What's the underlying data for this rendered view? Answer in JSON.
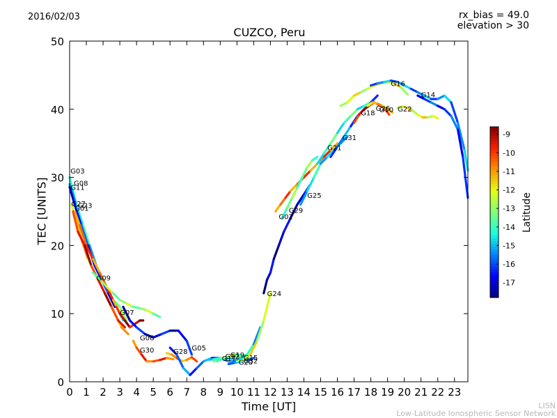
{
  "header": {
    "date": "2016/02/03",
    "note_bias": "rx_bias = 49.0",
    "note_elevation": "elevation > 30"
  },
  "footer": {
    "credit_line1": "LISN",
    "credit_line2": "Low-Latitude Ionospheric Sensor Network"
  },
  "chart_data": {
    "type": "scatter",
    "title": "CUZCO, Peru",
    "xlabel": "Time [UT]",
    "ylabel": "TEC [UNITS]",
    "xlim": [
      0,
      23.8
    ],
    "ylim": [
      0,
      50
    ],
    "xticks": [
      "0",
      "1",
      "2",
      "3",
      "4",
      "5",
      "6",
      "7",
      "8",
      "9",
      "10",
      "11",
      "12",
      "13",
      "14",
      "15",
      "16",
      "17",
      "18",
      "19",
      "20",
      "21",
      "22",
      "23"
    ],
    "yticks": [
      "0",
      "10",
      "20",
      "30",
      "40",
      "50"
    ],
    "grid": false,
    "colorbar": {
      "label": "Latitude",
      "range": [
        -17.8,
        -8.6
      ],
      "ticks": [
        "-9",
        "-10",
        "-11",
        "-12",
        "-13",
        "-14",
        "-15",
        "-16",
        "-17"
      ],
      "colors": [
        "#00007f",
        "#0000ff",
        "#0080ff",
        "#17ffe0",
        "#7dff7a",
        "#e3ff14",
        "#ff9400",
        "#ff1e00",
        "#7f0000"
      ]
    },
    "series": [
      {
        "name": "G03",
        "label_at": [
          0.05,
          31
        ],
        "lat": -13.5,
        "x": [
          0.0,
          0.3,
          0.6,
          1.0,
          1.4,
          1.8,
          2.2,
          2.6,
          3.0,
          3.4
        ],
        "y": [
          30,
          27,
          24,
          21,
          18,
          16,
          14,
          12,
          11,
          9
        ]
      },
      {
        "name": "G08",
        "label_at": [
          0.25,
          29.2
        ],
        "lat": -14.5,
        "x": [
          0.0,
          0.4,
          0.8,
          1.2,
          1.6,
          2.0,
          2.4,
          2.8,
          3.2
        ],
        "y": [
          29,
          26,
          23,
          20,
          17,
          15,
          13,
          11,
          9
        ]
      },
      {
        "name": "G11",
        "label_at": [
          0.05,
          28.6
        ],
        "lat": -16.5,
        "x": [
          0.0,
          0.3,
          0.7,
          1.1,
          1.5,
          1.9,
          2.3,
          2.7
        ],
        "y": [
          28.6,
          26,
          23,
          20,
          17,
          15,
          13,
          11
        ]
      },
      {
        "name": "G27",
        "label_at": [
          0.1,
          26.2
        ],
        "lat": -11.5,
        "x": [
          0.1,
          0.4,
          0.7,
          1.1,
          1.5,
          1.9,
          2.3,
          2.7,
          3.1,
          3.5
        ],
        "y": [
          26,
          24,
          21,
          18,
          16,
          14,
          12,
          10,
          8,
          7
        ]
      },
      {
        "name": "G23",
        "label_at": [
          0.5,
          25.9
        ],
        "lat": -10.5,
        "x": [
          0.3,
          0.6,
          1.0,
          1.4,
          1.8,
          2.2,
          2.6,
          3.0
        ],
        "y": [
          25,
          23,
          20,
          18,
          16,
          14,
          12,
          10
        ]
      },
      {
        "name": "G01",
        "label_at": [
          0.3,
          25.5
        ],
        "lat": -9.5,
        "x": [
          0.2,
          0.5,
          0.9,
          1.3,
          1.7,
          2.1,
          2.5,
          2.9,
          3.3
        ],
        "y": [
          25,
          22,
          20,
          17,
          15,
          13,
          11,
          9,
          8
        ]
      },
      {
        "name": "G09",
        "label_at": [
          1.6,
          15.3
        ],
        "lat": -13.0,
        "x": [
          1.4,
          1.8,
          2.2,
          2.6,
          3.0,
          3.4,
          3.8,
          4.2,
          4.6,
          5.0,
          5.4
        ],
        "y": [
          16,
          15,
          14,
          13,
          12,
          11.5,
          11,
          10.8,
          10.5,
          10,
          9.5
        ]
      },
      {
        "name": "G07",
        "label_at": [
          3.0,
          10.2
        ],
        "lat": -9.2,
        "x": [
          2.8,
          3.0,
          3.3,
          3.6,
          3.9,
          4.2,
          4.4
        ],
        "y": [
          11,
          10,
          9,
          8,
          8.5,
          9,
          9
        ]
      },
      {
        "name": "G06",
        "label_at": [
          4.2,
          6.5
        ],
        "lat": -16.8,
        "x": [
          3.2,
          3.6,
          4.0,
          4.5,
          5.0,
          5.5,
          6.0,
          6.5,
          7.0,
          7.3
        ],
        "y": [
          11,
          9,
          8,
          7,
          6.5,
          7,
          7.5,
          7.5,
          6,
          4
        ]
      },
      {
        "name": "G30",
        "label_at": [
          4.2,
          4.7
        ],
        "lat": -10.2,
        "x": [
          3.8,
          4.0,
          4.3,
          4.6,
          5.0,
          5.4,
          5.8,
          6.2
        ],
        "y": [
          6,
          5,
          4,
          3,
          3,
          3.2,
          3.5,
          3.3
        ]
      },
      {
        "name": "G28",
        "label_at": [
          6.2,
          4.5
        ],
        "lat": -10.8,
        "x": [
          5.8,
          6.1,
          6.4,
          6.7,
          7.0,
          7.3,
          7.6
        ],
        "y": [
          4.2,
          4.0,
          3.5,
          3.0,
          3.2,
          3.6,
          3.0
        ]
      },
      {
        "name": "G05",
        "label_at": [
          7.3,
          5.0
        ],
        "lat": -15.8,
        "x": [
          6.0,
          6.4,
          6.8,
          7.2,
          7.6,
          8.0,
          8.5,
          9.0,
          9.5,
          10.0
        ],
        "y": [
          5,
          4,
          2,
          1,
          2,
          3,
          3.5,
          3.5,
          3,
          3
        ]
      },
      {
        "name": "G17",
        "label_at": [
          9.1,
          3.5
        ],
        "lat": -14.2,
        "x": [
          8.2,
          8.6,
          9.0,
          9.4,
          9.8,
          10.2
        ],
        "y": [
          3.2,
          3.3,
          3.5,
          3.5,
          3.3,
          3.0
        ]
      },
      {
        "name": "G12",
        "label_at": [
          9.3,
          3.8
        ],
        "lat": -12.6,
        "x": [
          8.6,
          9.0,
          9.4,
          9.8,
          10.2,
          10.6
        ],
        "y": [
          3.0,
          3.2,
          3.6,
          3.9,
          3.6,
          3.2
        ]
      },
      {
        "name": "G19",
        "label_at": [
          9.6,
          4.0
        ],
        "lat": -13.2,
        "x": [
          8.8,
          9.2,
          9.6,
          10.0,
          10.4,
          10.8
        ],
        "y": [
          3.0,
          3.4,
          3.8,
          4.0,
          3.8,
          3.4
        ]
      },
      {
        "name": "G20",
        "label_at": [
          10.1,
          2.9
        ],
        "lat": -15.2,
        "x": [
          9.5,
          9.9,
          10.3,
          10.7,
          11.0
        ],
        "y": [
          2.6,
          2.8,
          3.0,
          3.2,
          3.5
        ]
      },
      {
        "name": "G15",
        "label_at": [
          10.4,
          3.6
        ],
        "lat": -14.8,
        "x": [
          9.8,
          10.2,
          10.6,
          11.0,
          11.4
        ],
        "y": [
          3.0,
          3.4,
          4.0,
          5.5,
          8.0
        ]
      },
      {
        "name": "G32",
        "label_at": [
          10.4,
          3.1
        ],
        "lat": -12.2,
        "x": [
          10.0,
          10.4,
          10.8,
          11.2,
          11.6,
          12.0
        ],
        "y": [
          3.0,
          3.2,
          4.0,
          6.0,
          9.0,
          13.0
        ]
      },
      {
        "name": "G24",
        "label_at": [
          11.8,
          13.0
        ],
        "lat": -17.2,
        "x": [
          11.6,
          11.8,
          12.0,
          12.2,
          12.5,
          12.8,
          13.2,
          13.6,
          14.0,
          14.4
        ],
        "y": [
          13,
          15,
          16,
          18,
          20,
          22,
          24,
          26,
          27.5,
          29
        ]
      },
      {
        "name": "G02",
        "label_at": [
          12.5,
          24.3
        ],
        "lat": -10.5,
        "x": [
          12.3,
          12.6,
          12.9,
          13.2,
          13.6,
          14.0,
          14.4,
          14.8,
          15.2,
          15.6,
          16.0
        ],
        "y": [
          25,
          26,
          27,
          28,
          29,
          30,
          31,
          32,
          33,
          34,
          35
        ]
      },
      {
        "name": "G29",
        "label_at": [
          13.1,
          25.2
        ],
        "lat": -13.4,
        "x": [
          12.7,
          13.0,
          13.3,
          13.6,
          13.9,
          14.2,
          14.5,
          14.8
        ],
        "y": [
          24,
          25.5,
          27,
          28.5,
          30,
          31.5,
          32.5,
          33
        ]
      },
      {
        "name": "G25",
        "label_at": [
          14.2,
          27.4
        ],
        "lat": -14.6,
        "x": [
          13.8,
          14.2,
          14.6,
          15.0,
          15.4,
          15.8,
          16.2,
          16.6
        ],
        "y": [
          26,
          28,
          30,
          32,
          33,
          34,
          35,
          36
        ]
      },
      {
        "name": "G21",
        "label_at": [
          15.4,
          34.4
        ],
        "lat": -14.0,
        "x": [
          14.8,
          15.2,
          15.6,
          16.0,
          16.4,
          16.8,
          17.2,
          17.6,
          18.0
        ],
        "y": [
          32,
          33.5,
          35,
          36.5,
          38,
          39,
          40,
          40.5,
          41
        ]
      },
      {
        "name": "G31",
        "label_at": [
          16.3,
          35.9
        ],
        "lat": -15.6,
        "x": [
          15.6,
          16.0,
          16.4,
          16.8,
          17.2,
          17.6,
          18.0,
          18.4
        ],
        "y": [
          33,
          34.5,
          36,
          37.5,
          39,
          40,
          41,
          42
        ]
      },
      {
        "name": "G18",
        "label_at": [
          17.4,
          39.5
        ],
        "lat": -9.4,
        "x": [
          17.0,
          17.3,
          17.6,
          17.9,
          18.2,
          18.5,
          18.8,
          19.1
        ],
        "y": [
          38,
          39.2,
          40,
          40.5,
          41,
          40.6,
          40.2,
          39.2
        ]
      },
      {
        "name": "G26",
        "label_at": [
          18.3,
          40.2
        ],
        "lat": -11.4,
        "x": [
          17.8,
          18.1,
          18.4,
          18.7,
          19.0,
          19.3
        ],
        "y": [
          40.5,
          41,
          40.8,
          40.5,
          40.1,
          39.5
        ]
      },
      {
        "name": "G10",
        "label_at": [
          18.5,
          40.0
        ],
        "lat": -12.2,
        "x": [
          16.2,
          16.6,
          17.0,
          17.4,
          17.8,
          18.2,
          18.6,
          19.0,
          19.4,
          19.8,
          20.2
        ],
        "y": [
          40.5,
          41,
          42,
          42.5,
          43,
          43.5,
          43.8,
          44,
          43.8,
          43.2,
          42.2
        ]
      },
      {
        "name": "G16",
        "label_at": [
          19.2,
          43.8
        ],
        "lat": -15.4,
        "x": [
          18.0,
          18.4,
          18.8,
          19.2,
          19.6,
          20.0,
          20.4,
          20.8,
          21.2,
          21.6,
          22.0,
          22.4,
          22.8,
          23.2,
          23.6,
          23.8
        ],
        "y": [
          43.5,
          43.8,
          44,
          44.2,
          44,
          43.5,
          43,
          42.5,
          42,
          41.5,
          41.5,
          42,
          41,
          38,
          34,
          31
        ]
      },
      {
        "name": "G22",
        "label_at": [
          19.6,
          40.1
        ],
        "lat": -12.0,
        "x": [
          19.6,
          19.9,
          20.2,
          20.5,
          20.8,
          21.1,
          21.4,
          21.7,
          22.0
        ],
        "y": [
          40.2,
          40.4,
          40.2,
          39.8,
          39.2,
          38.8,
          38.8,
          39.0,
          38.7
        ]
      },
      {
        "name": "G14",
        "label_at": [
          21.0,
          42.2
        ],
        "lat": -16.2,
        "x": [
          20.8,
          21.2,
          21.6,
          22.0,
          22.4,
          22.8,
          23.2,
          23.5,
          23.8
        ],
        "y": [
          42,
          41.5,
          41,
          40.5,
          40,
          39,
          37,
          33,
          27
        ]
      }
    ]
  }
}
